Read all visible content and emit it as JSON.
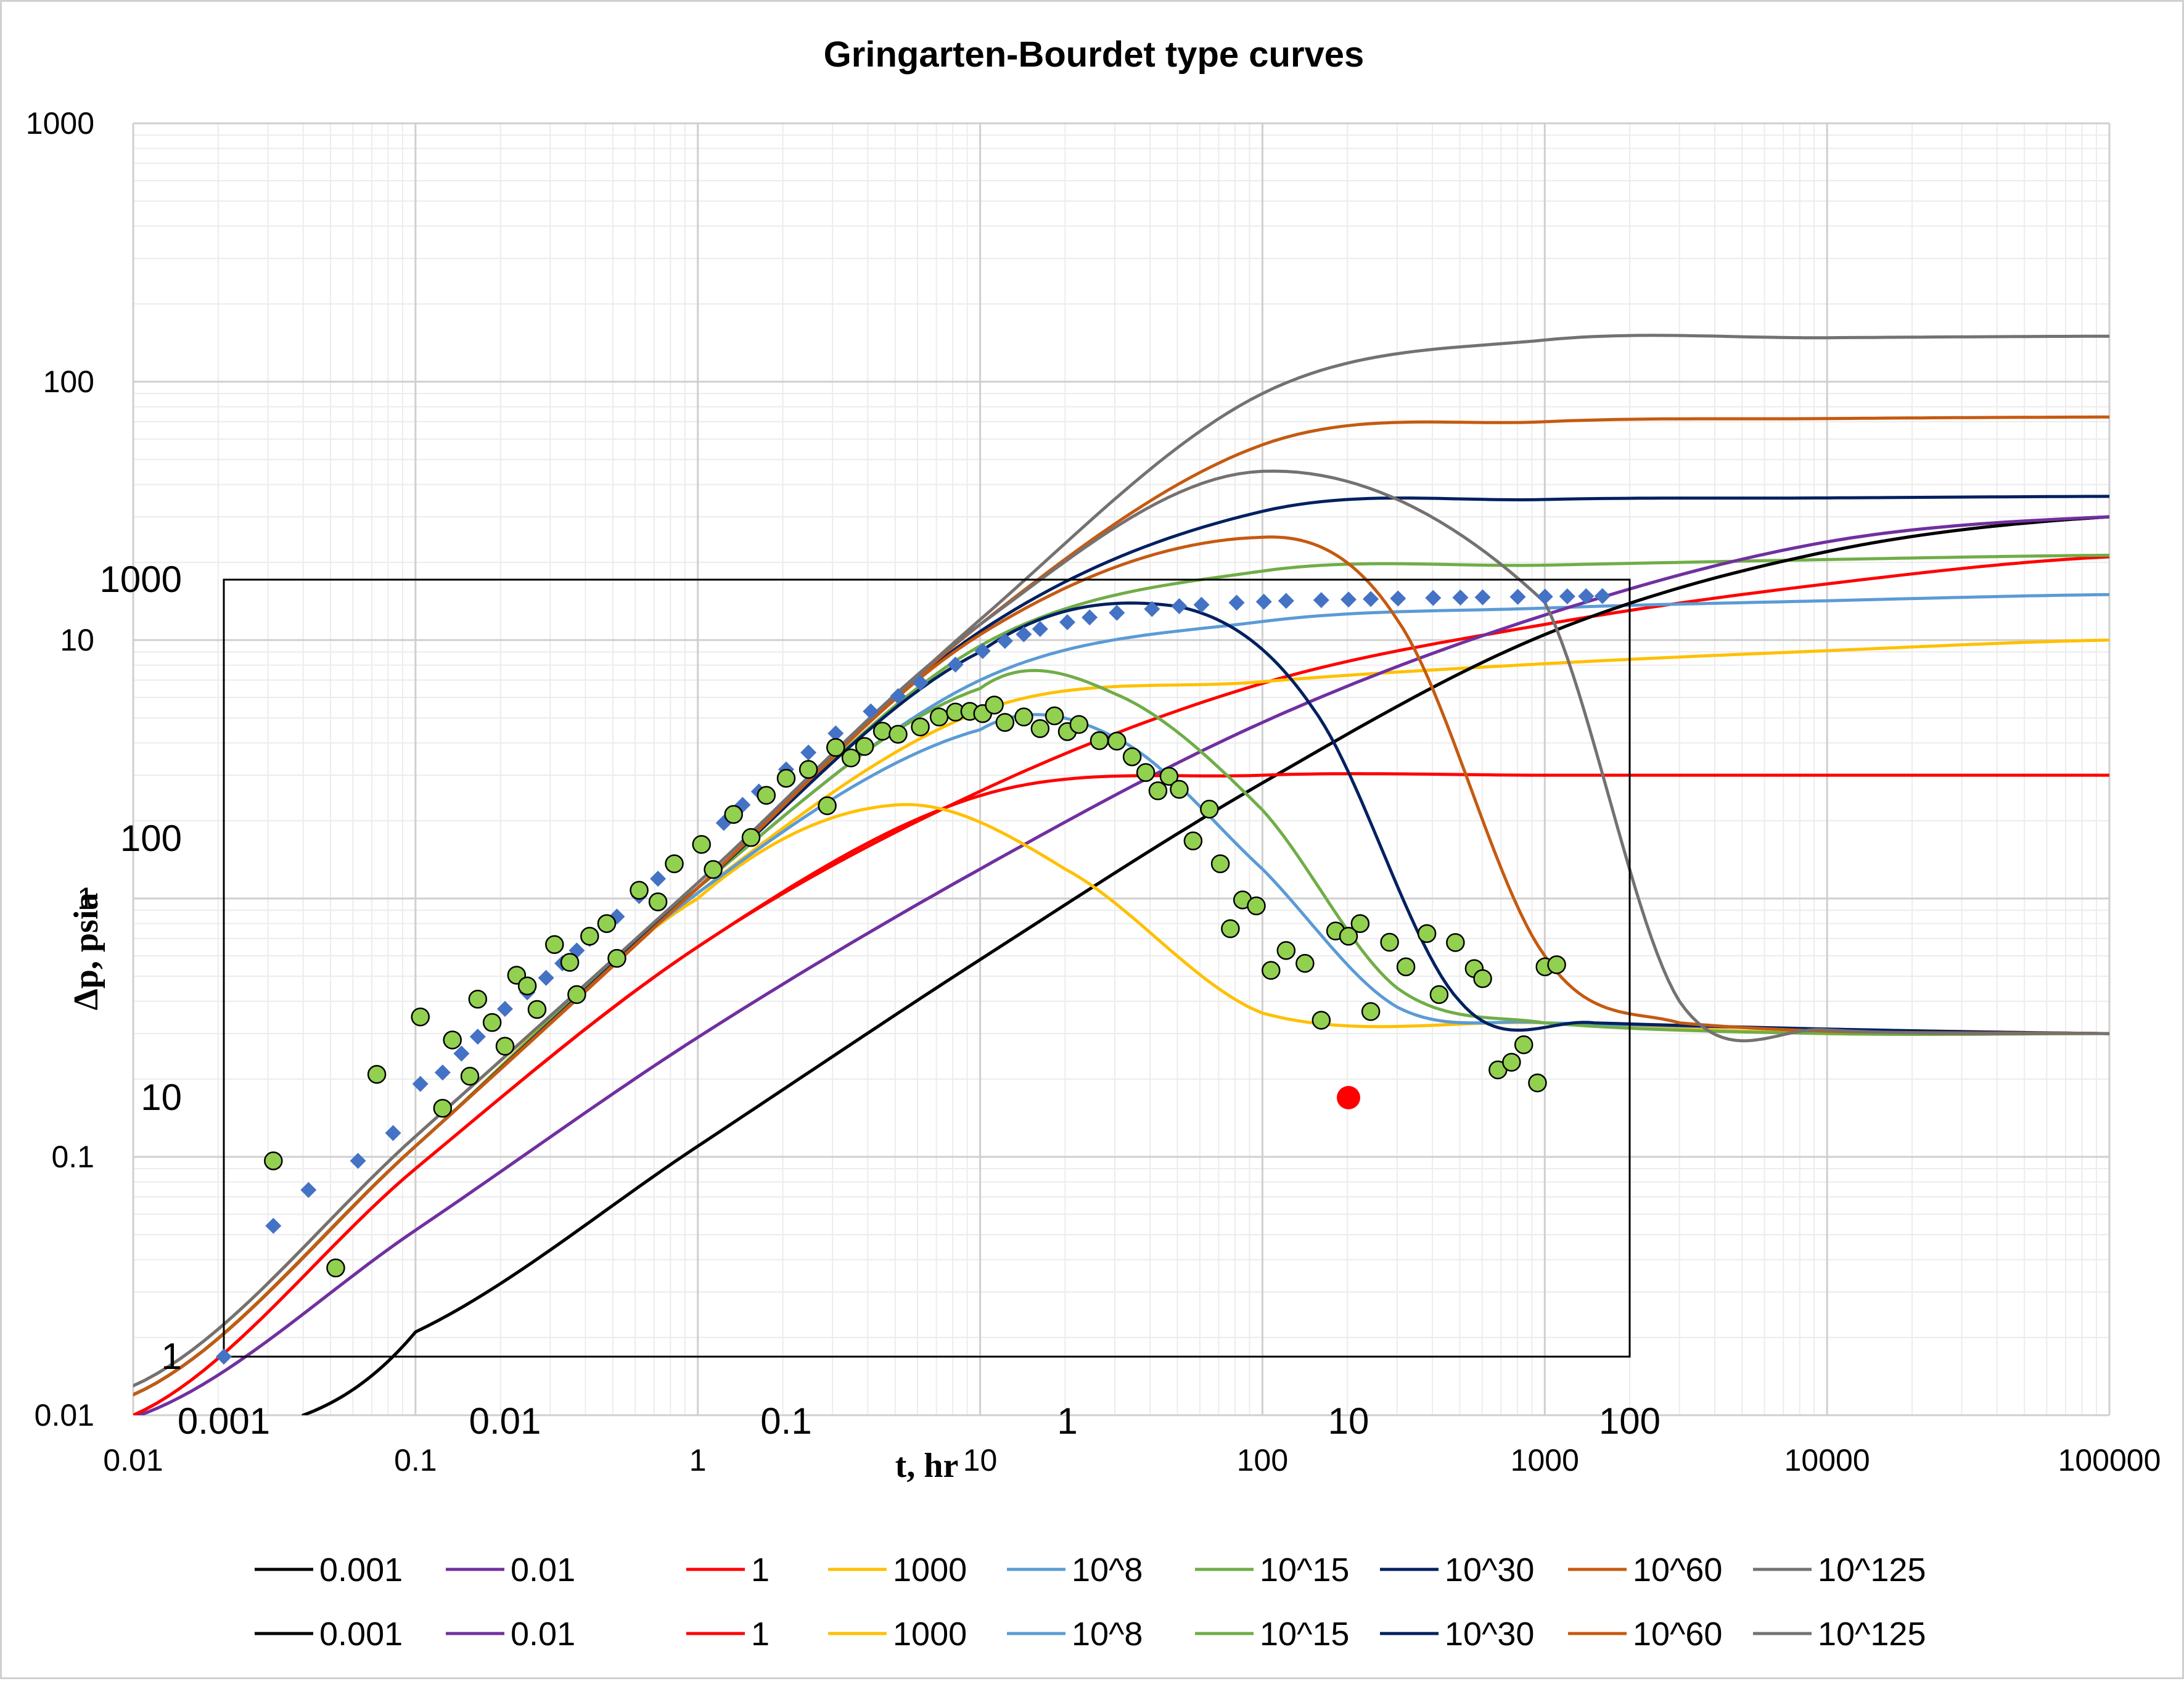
{
  "chart_data": [
    {
      "id": "type-curves",
      "type": "line",
      "title": "Gringarten-Bourdet type curves",
      "xscale": "log",
      "yscale": "log",
      "xlim": [
        0.01,
        100000
      ],
      "ylim": [
        0.01,
        1000
      ],
      "x_ticks": [
        "0.01",
        "0.1",
        "1",
        "10",
        "100",
        "1000",
        "10000",
        "100000"
      ],
      "y_ticks": [
        "0.01",
        "0.1",
        "1",
        "10",
        "100",
        "1000"
      ],
      "grid": "major and minor",
      "legend_position": "bottom",
      "series_groups": [
        {
          "kind": "pressure",
          "series": [
            {
              "name": "0.001",
              "color": "#000000",
              "x": [
                0.04,
                0.1,
                1,
                10,
                100,
                1000,
                10000,
                100000
              ],
              "values": [
                0.01,
                0.021,
                0.11,
                0.58,
                2.8,
                10.5,
                22,
                30
              ]
            },
            {
              "name": "0.01",
              "color": "#7030A0",
              "x": [
                0.01,
                0.1,
                1,
                10,
                100,
                1000,
                10000,
                100000
              ],
              "values": [
                0.0098,
                0.052,
                0.29,
                1.3,
                4.8,
                12.5,
                24,
                30
              ]
            },
            {
              "name": "1",
              "color": "#FF0000",
              "x": [
                0.01,
                0.1,
                1,
                10,
                100,
                1000,
                10000,
                100000
              ],
              "values": [
                0.01,
                0.09,
                0.65,
                2.6,
                6.8,
                11.5,
                16.5,
                21
              ]
            },
            {
              "name": "1000",
              "color": "#FFC000",
              "x": [
                0.01,
                0.1,
                1,
                10,
                100,
                1000,
                10000,
                100000
              ],
              "values": [
                0.012,
                0.11,
                1.05,
                5.3,
                6.9,
                8.1,
                9.1,
                10
              ]
            },
            {
              "name": "10^8",
              "color": "#5B9BD5",
              "x": [
                0.01,
                0.1,
                1,
                10,
                100,
                1000,
                10000,
                100000
              ],
              "values": [
                0.012,
                0.11,
                1.1,
                7.0,
                11.8,
                13.3,
                14.2,
                15
              ]
            },
            {
              "name": "10^15",
              "color": "#70AD47",
              "x": [
                0.01,
                0.1,
                1,
                10,
                100,
                1000,
                10000,
                100000
              ],
              "values": [
                0.012,
                0.11,
                1.1,
                9.5,
                18.5,
                19.5,
                20.5,
                21.3
              ]
            },
            {
              "name": "10^30",
              "color": "#002060",
              "x": [
                0.01,
                0.1,
                1,
                10,
                100,
                1000,
                10000,
                100000
              ],
              "values": [
                0.012,
                0.11,
                1.1,
                10.8,
                31.5,
                35,
                35.5,
                36
              ]
            },
            {
              "name": "10^60",
              "color": "#C55A11",
              "x": [
                0.01,
                0.1,
                1,
                10,
                100,
                1000,
                10000,
                100000
              ],
              "values": [
                0.012,
                0.11,
                1.1,
                11.5,
                57,
                70,
                72,
                73
              ]
            },
            {
              "name": "10^125",
              "color": "#767171",
              "x": [
                0.01,
                0.1,
                1,
                10,
                100,
                1000,
                10000,
                100000
              ],
              "values": [
                0.013,
                0.12,
                1.15,
                12,
                90,
                145,
                148,
                150
              ]
            }
          ]
        },
        {
          "kind": "derivative",
          "series": [
            {
              "name": "0.001",
              "color": "#000000",
              "x": [
                0.04,
                0.1,
                1,
                10,
                100,
                1000,
                10000,
                100000
              ],
              "values": [
                0.01,
                0.021,
                0.11,
                0.58,
                2.8,
                10.5,
                22,
                30
              ]
            },
            {
              "name": "0.01",
              "color": "#7030A0",
              "x": [
                0.01,
                0.1,
                1,
                10,
                100,
                1000,
                10000,
                100000
              ],
              "values": [
                0.0098,
                0.052,
                0.29,
                1.3,
                4.8,
                12.5,
                24,
                30
              ]
            },
            {
              "name": "1",
              "color": "#FF0000",
              "x": [
                0.01,
                0.1,
                1,
                10,
                100,
                1000,
                10000,
                100000
              ],
              "values": [
                0.01,
                0.09,
                0.65,
                2.5,
                3.0,
                3.0,
                3.0,
                3.0
              ]
            },
            {
              "name": "1000",
              "color": "#FFC000",
              "x": [
                0.01,
                0.1,
                1,
                5,
                20,
                100,
                1000,
                10000,
                100000
              ],
              "values": [
                0.012,
                0.11,
                1.0,
                2.3,
                1.3,
                0.36,
                0.33,
                0.3,
                0.3
              ]
            },
            {
              "name": "10^8",
              "color": "#5B9BD5",
              "x": [
                0.01,
                0.1,
                1,
                10,
                30,
                100,
                300,
                1000,
                100000
              ],
              "values": [
                0.012,
                0.11,
                1.05,
                4.5,
                4.2,
                1.3,
                0.38,
                0.33,
                0.3
              ]
            },
            {
              "name": "10^15",
              "color": "#70AD47",
              "x": [
                0.01,
                0.1,
                1,
                10,
                30,
                100,
                300,
                1000,
                10000,
                100000
              ],
              "values": [
                0.012,
                0.11,
                1.1,
                6.5,
                6.2,
                2.2,
                0.45,
                0.33,
                0.3,
                0.3
              ]
            },
            {
              "name": "10^30",
              "color": "#002060",
              "x": [
                0.01,
                0.1,
                1,
                10,
                50,
                150,
                500,
                1500,
                100000
              ],
              "values": [
                0.012,
                0.11,
                1.1,
                9.0,
                13.5,
                5.5,
                0.4,
                0.33,
                0.3
              ]
            },
            {
              "name": "10^60",
              "color": "#C55A11",
              "x": [
                0.01,
                0.1,
                1,
                10,
                100,
                300,
                1000,
                3000,
                100000
              ],
              "values": [
                0.012,
                0.11,
                1.1,
                10.5,
                25,
                12,
                0.6,
                0.33,
                0.3
              ]
            },
            {
              "name": "10^125",
              "color": "#767171",
              "x": [
                0.01,
                0.1,
                1,
                10,
                100,
                1000,
                3000,
                10000,
                100000
              ],
              "values": [
                0.013,
                0.12,
                1.15,
                11.5,
                45,
                14,
                0.4,
                0.31,
                0.3
              ]
            }
          ]
        }
      ]
    },
    {
      "id": "field-data",
      "type": "scatter",
      "xlabel": "t, hr",
      "ylabel": "Δp, psia",
      "xscale": "log",
      "yscale": "log",
      "xlim": [
        0.001,
        100
      ],
      "ylim": [
        1,
        1000
      ],
      "x_ticks": [
        "0.001",
        "0.01",
        "0.1",
        "1",
        "10",
        "100"
      ],
      "y_ticks": [
        "1",
        "10",
        "100",
        "1000"
      ],
      "series": [
        {
          "marker": "diamond",
          "color": "#4472C4",
          "x": [
            0.001,
            0.0015,
            0.002,
            0.003,
            0.004,
            0.005,
            0.006,
            0.007,
            0.008,
            0.009,
            0.01,
            0.012,
            0.014,
            0.016,
            0.018,
            0.02,
            0.025,
            0.03,
            0.035,
            0.04,
            0.05,
            0.06,
            0.07,
            0.08,
            0.1,
            0.12,
            0.15,
            0.2,
            0.25,
            0.3,
            0.4,
            0.5,
            0.6,
            0.7,
            0.8,
            1.0,
            1.2,
            1.5,
            2,
            2.5,
            3,
            4,
            5,
            6,
            8,
            10,
            12,
            15,
            20,
            25,
            30,
            40,
            50,
            60,
            70,
            80
          ],
          "values": [
            1.0,
            3.2,
            4.4,
            5.7,
            7.3,
            11.3,
            12.5,
            14.8,
            17.2,
            19.8,
            22,
            25.5,
            29,
            33,
            37,
            41,
            50,
            60,
            70,
            80,
            96,
            115,
            135,
            152,
            185,
            215,
            255,
            310,
            355,
            400,
            470,
            530,
            580,
            615,
            645,
            685,
            715,
            745,
            770,
            790,
            800,
            815,
            822,
            828,
            834,
            838,
            842,
            846,
            850,
            853,
            855,
            858,
            860,
            862,
            863,
            864
          ]
        },
        {
          "marker": "circle",
          "color": "#92D050",
          "x": [
            0.0015,
            0.0025,
            0.0035,
            0.005,
            0.006,
            0.0065,
            0.0075,
            0.008,
            0.009,
            0.01,
            0.011,
            0.012,
            0.013,
            0.015,
            0.017,
            0.018,
            0.02,
            0.023,
            0.025,
            0.03,
            0.035,
            0.04,
            0.05,
            0.055,
            0.065,
            0.075,
            0.085,
            0.1,
            0.12,
            0.14,
            0.15,
            0.17,
            0.19,
            0.22,
            0.25,
            0.3,
            0.35,
            0.4,
            0.45,
            0.5,
            0.55,
            0.6,
            0.7,
            0.8,
            0.9,
            1.0,
            1.1,
            1.3,
            1.5,
            1.7,
            1.9,
            2.1,
            2.3,
            2.5,
            2.8,
            3.2,
            3.5,
            3.8,
            4.2,
            4.7,
            5.3,
            6.0,
            7.0,
            8.0,
            9.0,
            10,
            11,
            12,
            14,
            16,
            19,
            21,
            24,
            28,
            30,
            34,
            38,
            42,
            47,
            50,
            55
          ],
          "values": [
            5.7,
            2.2,
            12.3,
            20.5,
            9.1,
            16.7,
            12.1,
            24,
            19.5,
            15.8,
            29.7,
            27,
            21.9,
            39,
            33.3,
            25,
            42,
            47,
            34.5,
            63.2,
            57,
            80,
            95,
            76,
            124,
            101,
            147,
            171,
            185,
            134,
            225,
            205,
            227,
            260,
            253,
            270,
            295,
            308,
            310,
            304,
            328,
            281,
            295,
            266,
            298,
            259,
            276,
            239,
            238,
            207,
            180,
            153,
            174,
            155,
            98,
            130,
            80,
            44.9,
            58,
            55,
            31,
            37,
            33,
            19.9,
            44,
            42,
            47,
            21.5,
            39.8,
            32,
            43,
            25,
            39.7,
            31.5,
            28.8,
            12.8,
            13.7,
            16,
            11.4,
            32,
            32.6
          ]
        },
        {
          "marker": "circle",
          "color": "#FF0000",
          "x": [
            10
          ],
          "values": [
            10
          ]
        }
      ]
    }
  ],
  "legend": {
    "rows": [
      [
        {
          "label": "0.001",
          "color": "#000000"
        },
        {
          "label": "0.01",
          "color": "#7030A0"
        },
        {
          "label": "1",
          "color": "#FF0000"
        },
        {
          "label": "1000",
          "color": "#FFC000"
        },
        {
          "label": "10^8",
          "color": "#5B9BD5"
        },
        {
          "label": "10^15",
          "color": "#70AD47"
        },
        {
          "label": "10^30",
          "color": "#002060"
        },
        {
          "label": "10^60",
          "color": "#C55A11"
        },
        {
          "label": "10^125",
          "color": "#767171"
        }
      ],
      [
        {
          "label": "0.001",
          "color": "#000000"
        },
        {
          "label": "0.01",
          "color": "#7030A0"
        },
        {
          "label": "1",
          "color": "#FF0000"
        },
        {
          "label": "1000",
          "color": "#FFC000"
        },
        {
          "label": "10^8",
          "color": "#5B9BD5"
        },
        {
          "label": "10^15",
          "color": "#70AD47"
        },
        {
          "label": "10^30",
          "color": "#002060"
        },
        {
          "label": "10^60",
          "color": "#C55A11"
        },
        {
          "label": "10^125",
          "color": "#767171"
        }
      ]
    ]
  }
}
